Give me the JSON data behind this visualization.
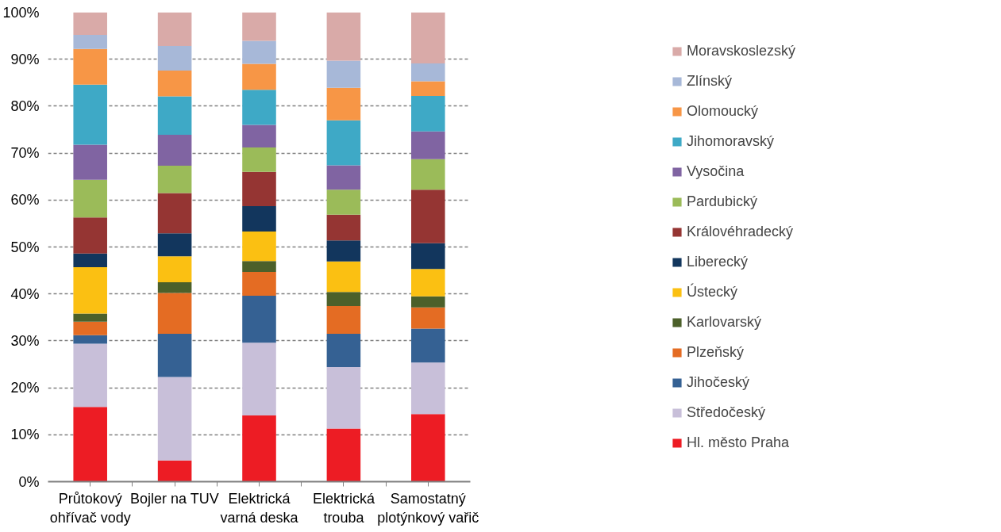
{
  "chart_data": {
    "type": "bar",
    "stacked": true,
    "categories": [
      "Průtokový\nohřívač vody",
      "Bojler na TUV",
      "Elektrická\nvarná deska",
      "Elektrická\ntrouba",
      "Samostatný\nplotýnkový vařič"
    ],
    "ylim": [
      0,
      100
    ],
    "yticks": [
      {
        "value": 0,
        "label": "0%"
      },
      {
        "value": 10,
        "label": "10%"
      },
      {
        "value": 20,
        "label": "20%"
      },
      {
        "value": 30,
        "label": "30%"
      },
      {
        "value": 40,
        "label": "40%"
      },
      {
        "value": 50,
        "label": "50%"
      },
      {
        "value": 60,
        "label": "60%"
      },
      {
        "value": 70,
        "label": "70%"
      },
      {
        "value": 80,
        "label": "80%"
      },
      {
        "value": 90,
        "label": "90%"
      },
      {
        "value": 100,
        "label": "100%"
      }
    ],
    "grid": "y",
    "legend": "right",
    "series": [
      {
        "name": "Hl. město Praha",
        "color": "#ed1c24",
        "values": [
          15.9,
          4.5,
          14.1,
          11.3,
          14.4
        ]
      },
      {
        "name": "Středočeský",
        "color": "#c8bfd9",
        "values": [
          13.5,
          17.8,
          15.5,
          13.1,
          11.0
        ]
      },
      {
        "name": "Jihočeský",
        "color": "#356193",
        "values": [
          1.8,
          9.2,
          10.0,
          7.1,
          7.2
        ]
      },
      {
        "name": "Plzeňský",
        "color": "#e46c23",
        "values": [
          2.9,
          8.7,
          5.1,
          5.9,
          4.5
        ]
      },
      {
        "name": "Karlovarský",
        "color": "#4c602a",
        "values": [
          1.7,
          2.3,
          2.3,
          3.0,
          2.4
        ]
      },
      {
        "name": "Ústecký",
        "color": "#fbc012",
        "values": [
          9.9,
          5.5,
          6.3,
          6.5,
          5.8
        ]
      },
      {
        "name": "Liberecký",
        "color": "#12365d",
        "values": [
          2.9,
          4.9,
          5.4,
          4.5,
          5.5
        ]
      },
      {
        "name": "Královéhradecký",
        "color": "#953533",
        "values": [
          7.7,
          8.6,
          7.3,
          5.5,
          11.4
        ]
      },
      {
        "name": "Pardubický",
        "color": "#9bbb59",
        "values": [
          8.0,
          5.8,
          5.2,
          5.3,
          6.5
        ]
      },
      {
        "name": "Vysočina",
        "color": "#8064a2",
        "values": [
          7.5,
          6.6,
          4.8,
          5.2,
          5.9
        ]
      },
      {
        "name": "Jihomoravský",
        "color": "#3ea9c6",
        "values": [
          12.8,
          8.2,
          7.5,
          9.6,
          7.6
        ]
      },
      {
        "name": "Olomoucký",
        "color": "#f79646",
        "values": [
          7.6,
          5.5,
          5.5,
          6.9,
          3.1
        ]
      },
      {
        "name": "Zlínský",
        "color": "#a7b8d8",
        "values": [
          3.0,
          5.2,
          4.9,
          5.8,
          3.8
        ]
      },
      {
        "name": "Moravskoslezský",
        "color": "#d9aaa8",
        "values": [
          4.8,
          7.2,
          6.1,
          10.3,
          10.9
        ]
      }
    ]
  }
}
